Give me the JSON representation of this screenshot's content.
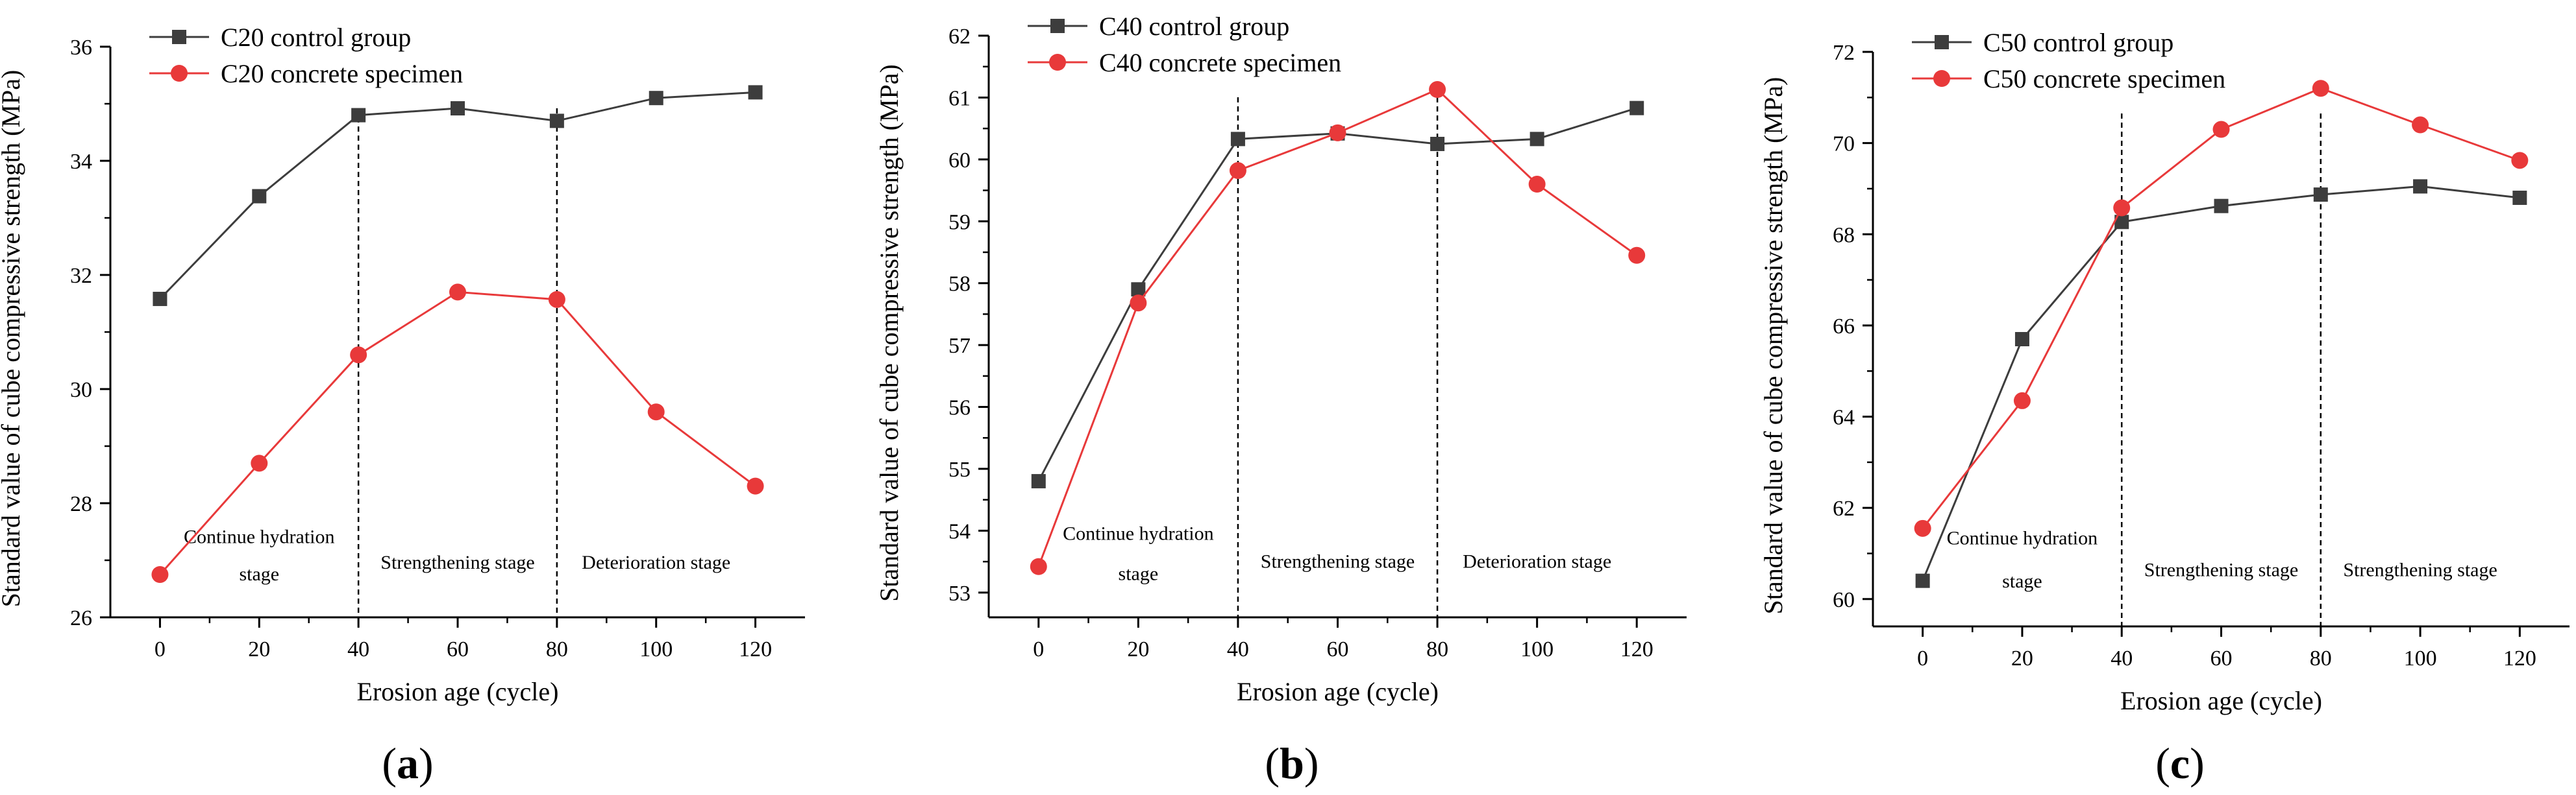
{
  "figure": {
    "xlabel": "Erosion age (cycle)",
    "ylabel": "Standard value of cube compressive strength (MPa)"
  },
  "chart_data": [
    {
      "type": "line",
      "panel": "a",
      "x": [
        0,
        20,
        40,
        60,
        80,
        100,
        120
      ],
      "xlim": [
        -10,
        130
      ],
      "ylim": [
        26,
        36
      ],
      "xticks": [
        0,
        20,
        40,
        60,
        80,
        100,
        120
      ],
      "yticks": [
        26,
        28,
        30,
        32,
        34,
        36
      ],
      "xlabel": "Erosion age (cycle)",
      "ylabel": "Standard value of cube compressive strength (MPa)",
      "legend": "top-left",
      "grid": false,
      "series": [
        {
          "name": "C20 control group",
          "color": "#3d3d3d",
          "marker": "square",
          "values": [
            31.58,
            33.38,
            34.8,
            34.92,
            34.7,
            35.1,
            35.2
          ]
        },
        {
          "name": "C20 concrete specimen",
          "color": "#e8393a",
          "marker": "circle",
          "values": [
            26.75,
            28.7,
            30.6,
            31.7,
            31.57,
            29.6,
            28.3
          ]
        }
      ],
      "dividers": [
        40,
        80
      ],
      "stage_labels": [
        {
          "lines": [
            "Continue hydration",
            "stage"
          ],
          "x": 20,
          "y": [
            27.3,
            26.65
          ]
        },
        {
          "lines": [
            "Strengthening stage"
          ],
          "x": 60,
          "y": [
            26.85
          ]
        },
        {
          "lines": [
            "Deterioration stage"
          ],
          "x": 100,
          "y": [
            26.85
          ]
        }
      ]
    },
    {
      "type": "line",
      "panel": "b",
      "x": [
        0,
        20,
        40,
        60,
        80,
        100,
        120
      ],
      "xlim": [
        -10,
        130
      ],
      "ylim": [
        52.6,
        62
      ],
      "xticks": [
        0,
        20,
        40,
        60,
        80,
        100,
        120
      ],
      "yticks": [
        53,
        54,
        55,
        56,
        57,
        58,
        59,
        60,
        61,
        62
      ],
      "xlabel": "Erosion age (cycle)",
      "ylabel": "Standard value of cube compressive strength (MPa)",
      "legend": "top-left",
      "grid": false,
      "series": [
        {
          "name": "C40 control group",
          "color": "#3d3d3d",
          "marker": "square",
          "values": [
            54.8,
            57.9,
            60.33,
            60.42,
            60.25,
            60.33,
            60.83
          ]
        },
        {
          "name": "C40 concrete specimen",
          "color": "#e8393a",
          "marker": "circle",
          "values": [
            53.42,
            57.68,
            59.82,
            60.43,
            61.13,
            59.6,
            58.45
          ]
        }
      ],
      "dividers": [
        40,
        80
      ],
      "stage_labels": [
        {
          "lines": [
            "Continue hydration",
            "stage"
          ],
          "x": 20,
          "y": [
            53.85,
            53.2
          ]
        },
        {
          "lines": [
            "Strengthening stage"
          ],
          "x": 60,
          "y": [
            53.4
          ]
        },
        {
          "lines": [
            "Deterioration stage"
          ],
          "x": 100,
          "y": [
            53.4
          ]
        }
      ]
    },
    {
      "type": "line",
      "panel": "c",
      "x": [
        0,
        20,
        40,
        60,
        80,
        100,
        120
      ],
      "xlim": [
        -10,
        130
      ],
      "ylim": [
        59.4,
        72
      ],
      "xticks": [
        0,
        20,
        40,
        60,
        80,
        100,
        120
      ],
      "yticks": [
        60,
        62,
        64,
        66,
        68,
        70,
        72
      ],
      "xlabel": "Erosion age (cycle)",
      "ylabel": "Standard value of cube compressive strength (MPa)",
      "legend": "top-left",
      "grid": false,
      "series": [
        {
          "name": "C50 control group",
          "color": "#3d3d3d",
          "marker": "square",
          "values": [
            60.4,
            65.7,
            68.27,
            68.62,
            68.87,
            69.05,
            68.8
          ]
        },
        {
          "name": "C50 concrete specimen",
          "color": "#e8393a",
          "marker": "circle",
          "values": [
            61.55,
            64.35,
            68.58,
            70.3,
            71.2,
            70.4,
            69.62
          ]
        }
      ],
      "dividers": [
        40,
        80
      ],
      "stage_labels": [
        {
          "lines": [
            "Continue hydration",
            "stage"
          ],
          "x": 20,
          "y": [
            61.2,
            60.25
          ]
        },
        {
          "lines": [
            "Strengthening stage"
          ],
          "x": 60,
          "y": [
            60.5
          ]
        },
        {
          "lines": [
            "Strengthening stage"
          ],
          "x": 100,
          "y": [
            60.5
          ]
        }
      ]
    }
  ]
}
